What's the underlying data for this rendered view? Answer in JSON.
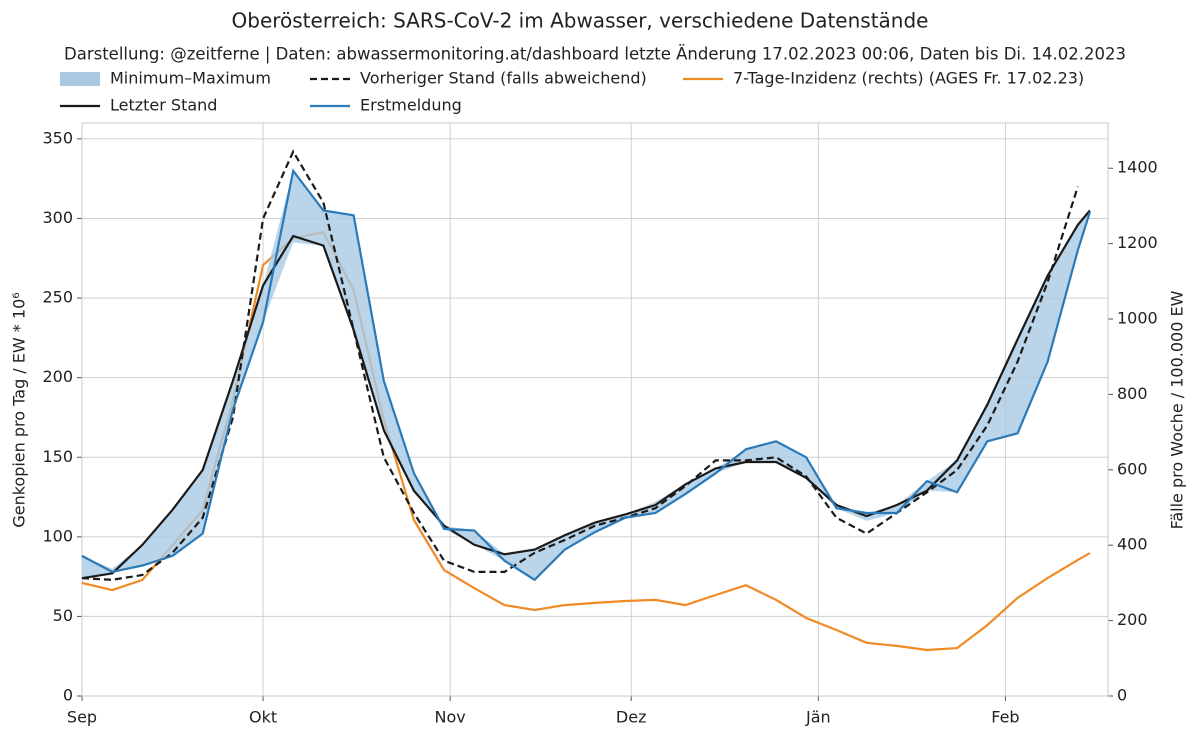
{
  "chart_data": {
    "type": "line",
    "title": "Oberösterreich: SARS-CoV-2 im Abwasser, verschiedene Datenstände",
    "subtitle": "Darstellung: @zeitferne | Daten: abwassermonitoring.at/dashboard letzte Änderung 17.02.2023 00:06, Daten bis Di. 14.02.2023",
    "y_label": "Genkopien pro Tag / EW * 10⁶",
    "y2_label": "Fälle pro Woche / 100.000 EW",
    "x": [
      0,
      5,
      10,
      15,
      20,
      25,
      30,
      35,
      40,
      45,
      50,
      55,
      60,
      65,
      70,
      75,
      80,
      85,
      90,
      95,
      100,
      105,
      110,
      115,
      120,
      125,
      130,
      135,
      140,
      145,
      150,
      155,
      160,
      165,
      167
    ],
    "xlim": [
      0,
      170
    ],
    "xticks": [
      {
        "value": 0,
        "label": "Sep"
      },
      {
        "value": 30,
        "label": "Okt"
      },
      {
        "value": 61,
        "label": "Nov"
      },
      {
        "value": 91,
        "label": "Dez"
      },
      {
        "value": 122,
        "label": "Jän"
      },
      {
        "value": 153,
        "label": "Feb"
      }
    ],
    "ylim": [
      0,
      360
    ],
    "yticks": [
      0,
      50,
      100,
      150,
      200,
      250,
      300,
      350
    ],
    "y2lim": [
      0,
      1520
    ],
    "y2ticks": [
      0,
      200,
      400,
      600,
      800,
      1000,
      1200,
      1400
    ],
    "grid": true,
    "series": [
      {
        "name": "Minimum–Maximum",
        "type": "band",
        "color": "#a9c9e3",
        "lower": [
          74,
          77,
          82,
          88,
          102,
          180,
          235,
          285,
          283,
          230,
          167,
          129,
          105,
          95,
          85,
          73,
          92,
          103,
          112,
          115,
          127,
          140,
          147,
          147,
          137,
          118,
          110,
          115,
          129,
          128,
          160,
          165,
          210,
          280,
          304
        ],
        "upper": [
          88,
          80,
          95,
          117,
          142,
          198,
          258,
          330,
          305,
          302,
          198,
          140,
          107,
          104,
          89,
          92,
          101,
          109,
          114,
          122,
          133,
          143,
          155,
          160,
          150,
          120,
          115,
          120,
          135,
          148,
          183,
          224,
          264,
          296,
          305
        ]
      },
      {
        "name": "Letzter Stand",
        "type": "line",
        "color": "#1a1a1a",
        "dash": false,
        "values": [
          74,
          77,
          95,
          117,
          142,
          198,
          258,
          289,
          283,
          230,
          167,
          129,
          107,
          95,
          89,
          92,
          101,
          109,
          114,
          120,
          133,
          143,
          147,
          147,
          137,
          120,
          113,
          120,
          129,
          148,
          183,
          224,
          264,
          296,
          305
        ]
      },
      {
        "name": "Vorheriger Stand (falls abweichend)",
        "type": "line",
        "color": "#1a1a1a",
        "dash": true,
        "values": [
          74,
          73,
          76,
          90,
          112,
          175,
          300,
          342,
          310,
          230,
          150,
          115,
          85,
          78,
          78,
          90,
          98,
          107,
          112,
          118,
          132,
          148,
          148,
          150,
          138,
          112,
          102,
          115,
          128,
          142,
          170,
          210,
          260,
          320,
          null
        ]
      },
      {
        "name": "Erstmeldung",
        "type": "line",
        "color": "#2a7ab8",
        "dash": false,
        "values": [
          88,
          78,
          82,
          88,
          102,
          180,
          235,
          330,
          305,
          302,
          198,
          140,
          105,
          104,
          85,
          73,
          92,
          103,
          112,
          115,
          127,
          140,
          155,
          160,
          150,
          118,
          115,
          115,
          135,
          128,
          160,
          165,
          210,
          280,
          304
        ]
      },
      {
        "name": "7-Tage-Inzidenz (rechts) (AGES Fr. 17.02.23)",
        "type": "line",
        "color": "#f08a24",
        "dash": false,
        "axis": "y2",
        "values": [
          300,
          281,
          308,
          400,
          493,
          785,
          1143,
          1215,
          1230,
          1077,
          732,
          467,
          334,
          286,
          241,
          228,
          241,
          247,
          252,
          255,
          241,
          268,
          294,
          255,
          207,
          175,
          141,
          133,
          122,
          127,
          188,
          260,
          313,
          361,
          379
        ]
      }
    ]
  }
}
